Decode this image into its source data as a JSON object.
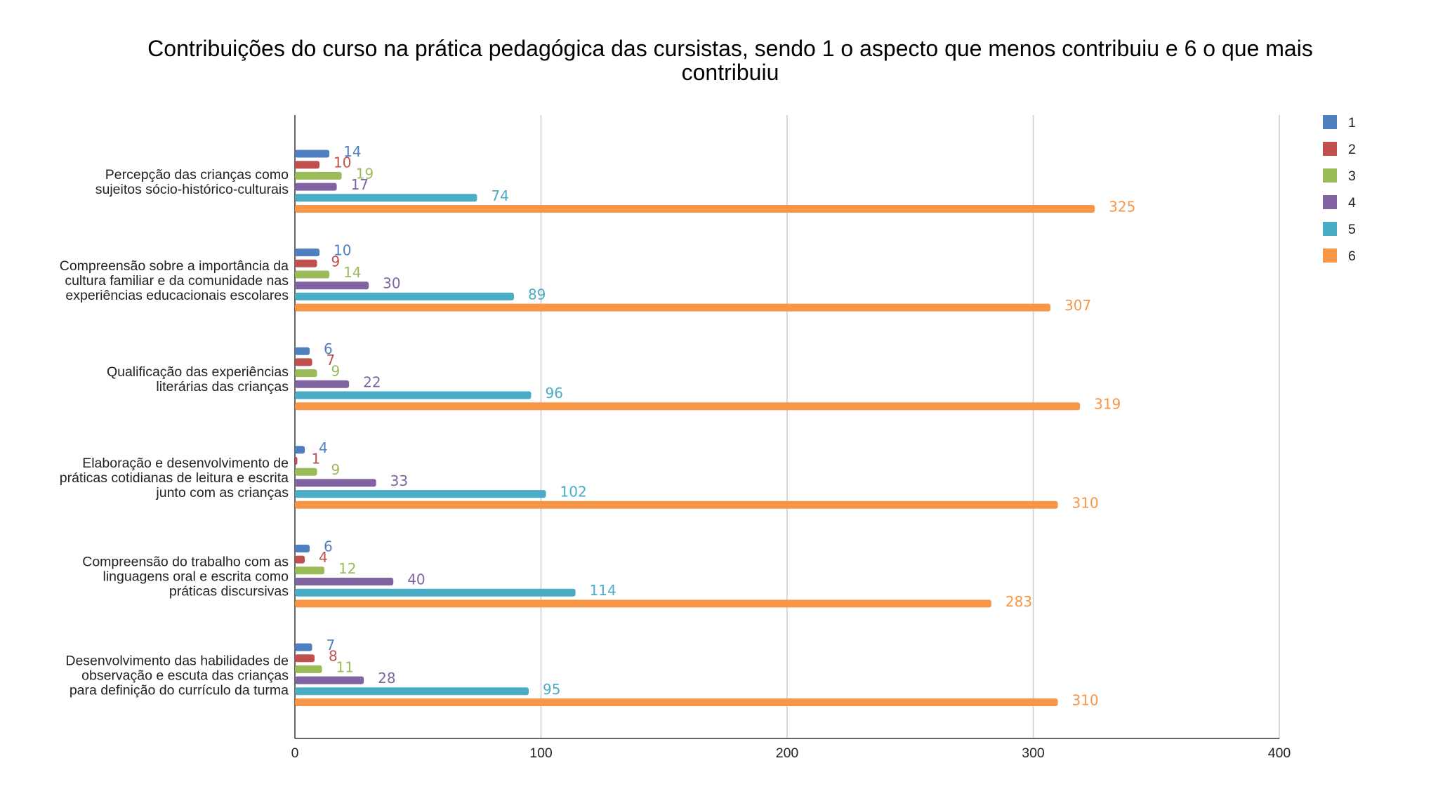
{
  "chart_data": {
    "type": "bar",
    "orientation": "horizontal",
    "title_lines": [
      "Contribuições do curso na prática pedagógica das cursistas,   sendo 1 o aspecto que menos contribuiu e 6  o que mais",
      "contribuiu"
    ],
    "categories": [
      [
        "Percepção das crianças como",
        "sujeitos sócio-histórico-culturais"
      ],
      [
        "Compreensão sobre a importância da",
        "cultura familiar e da comunidade nas",
        "experiências educacionais escolares"
      ],
      [
        "Qualificação das experiências",
        "literárias das crianças"
      ],
      [
        "Elaboração e desenvolvimento de",
        "práticas cotidianas de leitura e escrita",
        "junto com as crianças"
      ],
      [
        "Compreensão do trabalho com as",
        "linguagens oral e escrita como",
        "práticas discursivas"
      ],
      [
        "Desenvolvimento das habilidades de",
        "observação e escuta das crianças",
        "para definição do currículo da turma"
      ]
    ],
    "series": [
      {
        "name": "1",
        "color": "#4f7fbf",
        "values": [
          14,
          10,
          6,
          4,
          6,
          7
        ]
      },
      {
        "name": "2",
        "color": "#c0504d",
        "values": [
          10,
          9,
          7,
          1,
          4,
          8
        ]
      },
      {
        "name": "3",
        "color": "#9bbb59",
        "values": [
          19,
          14,
          9,
          9,
          12,
          11
        ]
      },
      {
        "name": "4",
        "color": "#8064a2",
        "values": [
          17,
          30,
          22,
          33,
          40,
          28
        ]
      },
      {
        "name": "5",
        "color": "#4bacc6",
        "values": [
          74,
          89,
          96,
          102,
          114,
          95
        ]
      },
      {
        "name": "6",
        "color": "#f79646",
        "values": [
          325,
          307,
          319,
          310,
          283,
          310
        ]
      }
    ],
    "xlim": [
      0,
      400
    ],
    "xticks": [
      0,
      100,
      200,
      300,
      400
    ],
    "legend_position": "top-right",
    "grid": true,
    "xlabel": "",
    "ylabel": ""
  }
}
